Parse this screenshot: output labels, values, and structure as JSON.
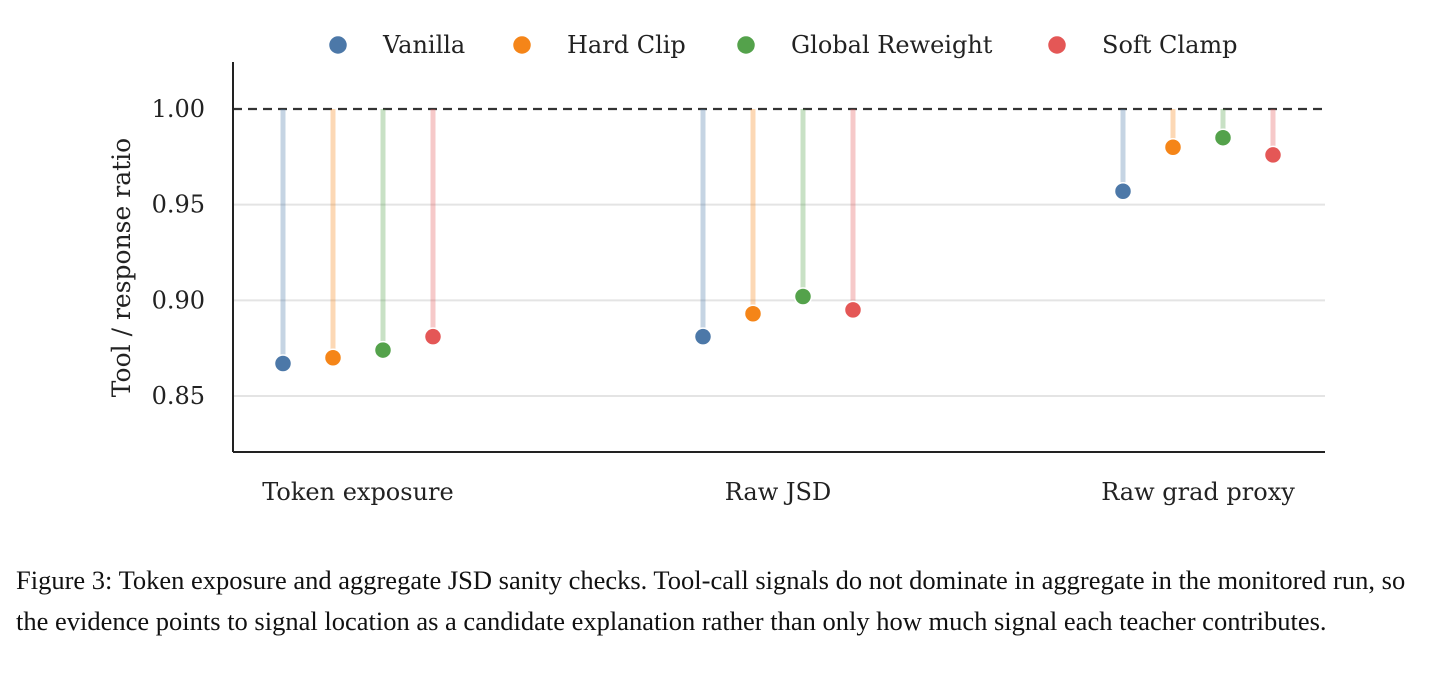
{
  "chart_data": {
    "type": "dot",
    "ylabel": "Tool / response ratio",
    "xlabel": "",
    "ylim": [
      0.82,
      1.025
    ],
    "yticks": [
      0.85,
      0.9,
      0.95,
      1.0
    ],
    "ytick_labels": [
      "0.85",
      "0.90",
      "0.95",
      "1.00"
    ],
    "reference_line": 1.0,
    "grid": true,
    "legend_position": "top",
    "categories": [
      "Token exposure",
      "Raw JSD",
      "Raw grad proxy"
    ],
    "series": [
      {
        "name": "Vanilla",
        "color": "#4c78a8",
        "values": [
          0.867,
          0.881,
          0.957
        ]
      },
      {
        "name": "Hard Clip",
        "color": "#f58518",
        "values": [
          0.87,
          0.893,
          0.98
        ]
      },
      {
        "name": "Global Reweight",
        "color": "#54a24b",
        "values": [
          0.874,
          0.902,
          0.985
        ]
      },
      {
        "name": "Soft Clamp",
        "color": "#e45756",
        "values": [
          0.881,
          0.895,
          0.976
        ]
      }
    ]
  },
  "caption": "Figure 3: Token exposure and aggregate JSD sanity checks. Tool-call signals do not dominate in aggregate in the monitored run, so the evidence points to signal location as a candidate explanation rather than only how much signal each teacher contributes."
}
